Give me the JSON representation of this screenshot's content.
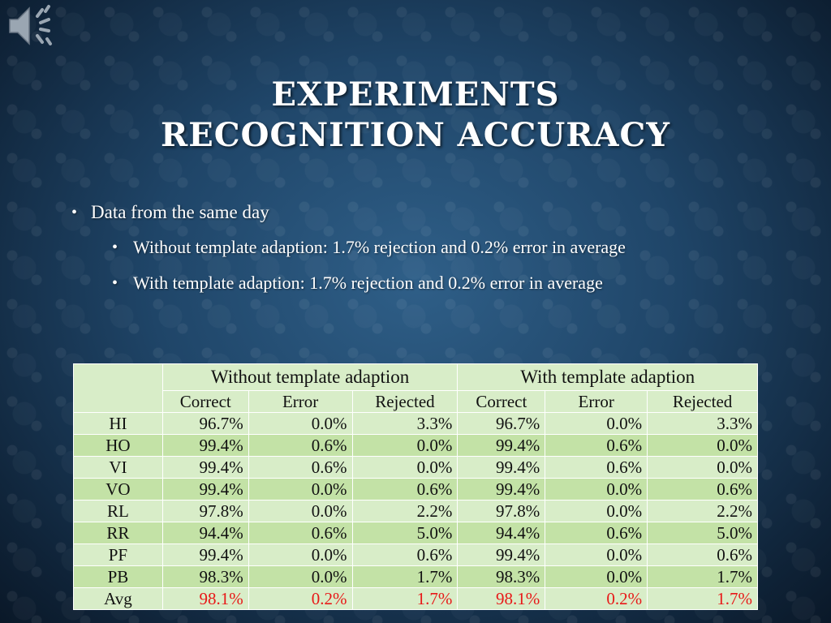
{
  "slide": {
    "title_line1": "EXPERIMENTS",
    "title_line2": "RECOGNITION ACCURACY",
    "bullet1": "Data from the same day",
    "bullet2": "Without template adaption: 1.7% rejection and 0.2% error in average",
    "bullet3": "With template adaption: 1.7% rejection and 0.2% error in average"
  },
  "icons": {
    "speaker": "speaker-icon"
  },
  "colors": {
    "highlight": "#e81818",
    "table_light": "#d8edc8",
    "table_dark": "#c3e2a6"
  },
  "table": {
    "group_without": "Without template adaption",
    "group_with": "With template adaption",
    "columns": [
      "Correct",
      "Error",
      "Rejected",
      "Correct",
      "Error",
      "Rejected"
    ],
    "rows": [
      {
        "label": "HI",
        "values": [
          "96.7%",
          "0.0%",
          "3.3%",
          "96.7%",
          "0.0%",
          "3.3%"
        ]
      },
      {
        "label": "HO",
        "values": [
          "99.4%",
          "0.6%",
          "0.0%",
          "99.4%",
          "0.6%",
          "0.0%"
        ]
      },
      {
        "label": "VI",
        "values": [
          "99.4%",
          "0.6%",
          "0.0%",
          "99.4%",
          "0.6%",
          "0.0%"
        ]
      },
      {
        "label": "VO",
        "values": [
          "99.4%",
          "0.0%",
          "0.6%",
          "99.4%",
          "0.0%",
          "0.6%"
        ]
      },
      {
        "label": "RL",
        "values": [
          "97.8%",
          "0.0%",
          "2.2%",
          "97.8%",
          "0.0%",
          "2.2%"
        ]
      },
      {
        "label": "RR",
        "values": [
          "94.4%",
          "0.6%",
          "5.0%",
          "94.4%",
          "0.6%",
          "5.0%"
        ]
      },
      {
        "label": "PF",
        "values": [
          "99.4%",
          "0.0%",
          "0.6%",
          "99.4%",
          "0.0%",
          "0.6%"
        ]
      },
      {
        "label": "PB",
        "values": [
          "98.3%",
          "0.0%",
          "1.7%",
          "98.3%",
          "0.0%",
          "1.7%"
        ]
      },
      {
        "label": "Avg",
        "values": [
          "98.1%",
          "0.2%",
          "1.7%",
          "98.1%",
          "0.2%",
          "1.7%"
        ]
      }
    ]
  }
}
